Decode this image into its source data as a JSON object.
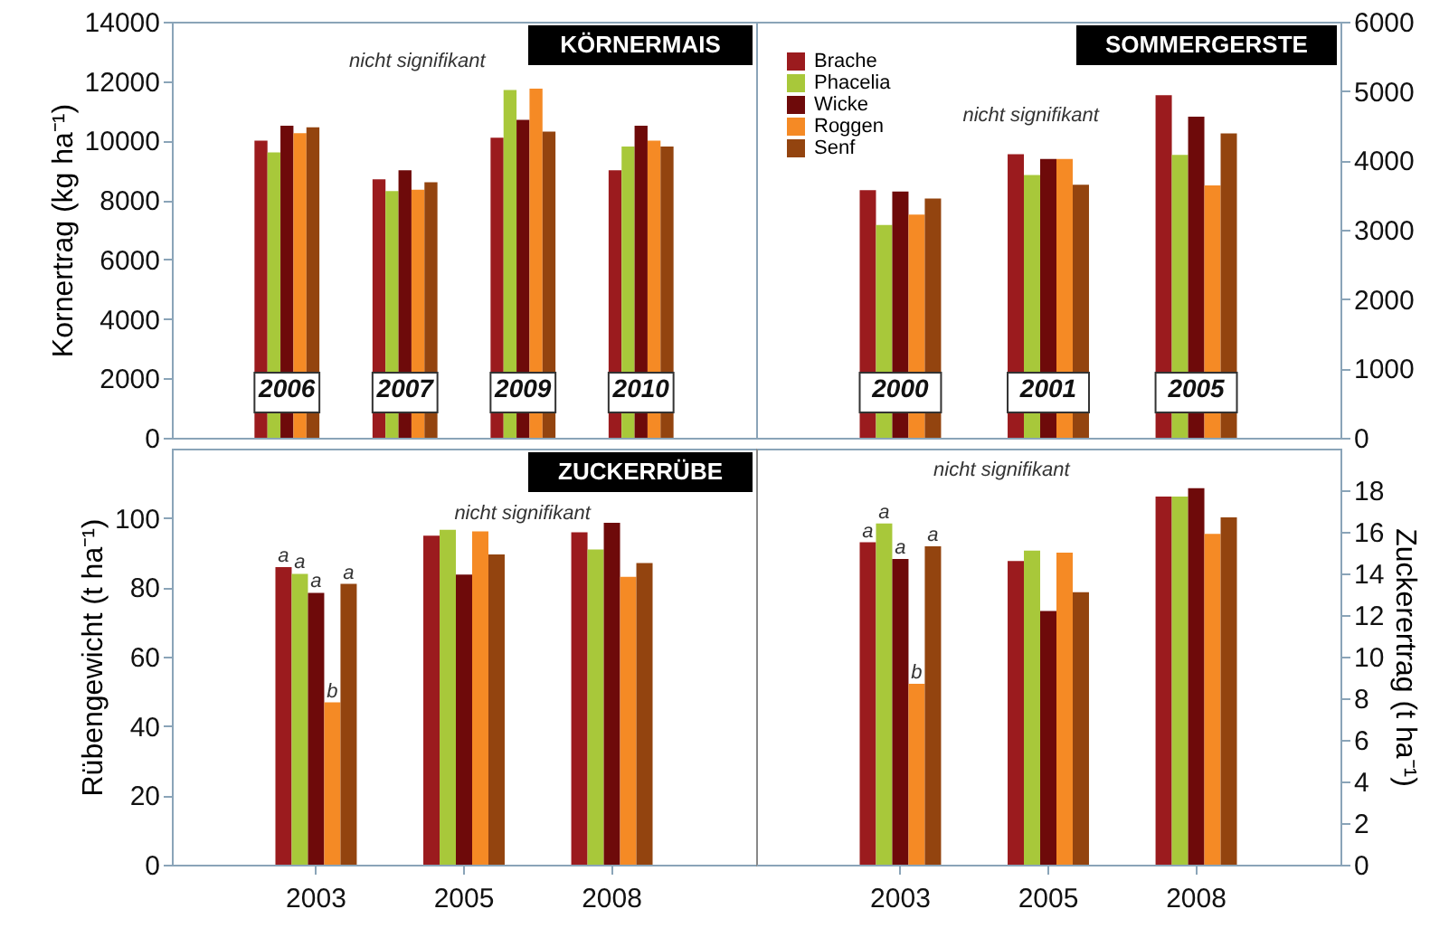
{
  "chart_data": [
    {
      "type": "bar",
      "title": "KÖRNERMAIS",
      "ylabel": "Kornertrag (kg ha⁻¹)",
      "annotations": [
        "nicht signifikant"
      ],
      "categories": [
        "2006",
        "2007",
        "2009",
        "2010"
      ],
      "ylim": [
        0,
        14000
      ],
      "yticks": [
        0,
        2000,
        4000,
        6000,
        8000,
        10000,
        12000,
        14000
      ],
      "series": [
        {
          "color": "#9b1b1e",
          "values": [
            10000,
            8700,
            10100,
            9000
          ]
        },
        {
          "color": "#a8c83a",
          "values": [
            9600,
            8300,
            11700,
            9800
          ]
        },
        {
          "color": "#6e0a0a",
          "values": [
            10500,
            9000,
            10700,
            10500
          ]
        },
        {
          "color": "#f58a25",
          "values": [
            10250,
            8350,
            11750,
            10000
          ]
        },
        {
          "color": "#93440f",
          "values": [
            10450,
            8600,
            10300,
            9800
          ]
        }
      ]
    },
    {
      "type": "bar",
      "title": "SOMMERGERSTE",
      "annotations": [
        "nicht signifikant"
      ],
      "legend": "top left",
      "categories": [
        "2000",
        "2001",
        "2005"
      ],
      "y2lim": [
        0,
        6000
      ],
      "y2ticks": [
        0,
        1000,
        2000,
        3000,
        4000,
        5000,
        6000
      ],
      "series": [
        {
          "name": "Brache",
          "color": "#9b1b1e",
          "axis": "y2",
          "values": [
            3570,
            4090,
            4940
          ]
        },
        {
          "name": "Phacelia",
          "color": "#a8c83a",
          "axis": "y2",
          "values": [
            3070,
            3790,
            4080
          ]
        },
        {
          "name": "Wicke",
          "color": "#6e0a0a",
          "axis": "y2",
          "values": [
            3550,
            4020,
            4630
          ]
        },
        {
          "name": "Roggen",
          "color": "#f58a25",
          "axis": "y2",
          "values": [
            3220,
            4020,
            3640
          ]
        },
        {
          "name": "Senf",
          "color": "#93440f",
          "axis": "y2",
          "values": [
            3450,
            3650,
            4390
          ]
        }
      ]
    },
    {
      "type": "bar",
      "title": "ZUCKERRÜBE",
      "ylabel": "Rübengewicht (t ha⁻¹)",
      "annotations": [
        "nicht signifikant"
      ],
      "categories": [
        "2003",
        "2005",
        "2008"
      ],
      "ylim": [
        0,
        120
      ],
      "yticks": [
        0,
        20,
        40,
        60,
        80,
        100
      ],
      "series": [
        {
          "color": "#9b1b1e",
          "values": [
            85.8,
            94.9,
            95.9
          ],
          "value_labels": [
            "a",
            null,
            null
          ]
        },
        {
          "color": "#a8c83a",
          "values": [
            83.9,
            96.6,
            90.9
          ],
          "value_labels": [
            "a",
            null,
            null
          ]
        },
        {
          "color": "#6e0a0a",
          "values": [
            78.4,
            83.7,
            98.6
          ],
          "value_labels": [
            "a",
            null,
            null
          ]
        },
        {
          "color": "#f58a25",
          "values": [
            46.8,
            96.1,
            83
          ],
          "value_labels": [
            "b",
            null,
            null
          ]
        },
        {
          "color": "#93440f",
          "values": [
            81,
            89.5,
            87
          ],
          "value_labels": [
            "a",
            null,
            null
          ]
        }
      ]
    },
    {
      "type": "bar",
      "y2label": "Zuckerertrag (t ha⁻¹)",
      "annotations": [
        "nicht signifikant"
      ],
      "categories": [
        "2003",
        "2005",
        "2008"
      ],
      "y2lim": [
        0,
        20
      ],
      "y2ticks": [
        0,
        2,
        4,
        6,
        8,
        10,
        12,
        14,
        16,
        18
      ],
      "series": [
        {
          "color": "#9b1b1e",
          "axis": "y2",
          "values": [
            15.5,
            14.6,
            17.7
          ],
          "value_labels": [
            "a",
            null,
            null
          ]
        },
        {
          "color": "#a8c83a",
          "axis": "y2",
          "values": [
            16.4,
            15.1,
            17.7
          ],
          "value_labels": [
            "a",
            null,
            null
          ]
        },
        {
          "color": "#6e0a0a",
          "axis": "y2",
          "values": [
            14.7,
            12.2,
            18.1
          ],
          "value_labels": [
            "a",
            null,
            null
          ]
        },
        {
          "color": "#f58a25",
          "axis": "y2",
          "values": [
            8.7,
            15.0,
            15.9
          ],
          "value_labels": [
            "b",
            null,
            null
          ]
        },
        {
          "color": "#93440f",
          "axis": "y2",
          "values": [
            15.3,
            13.1,
            16.7
          ],
          "value_labels": [
            "a",
            null,
            null
          ]
        }
      ]
    }
  ]
}
